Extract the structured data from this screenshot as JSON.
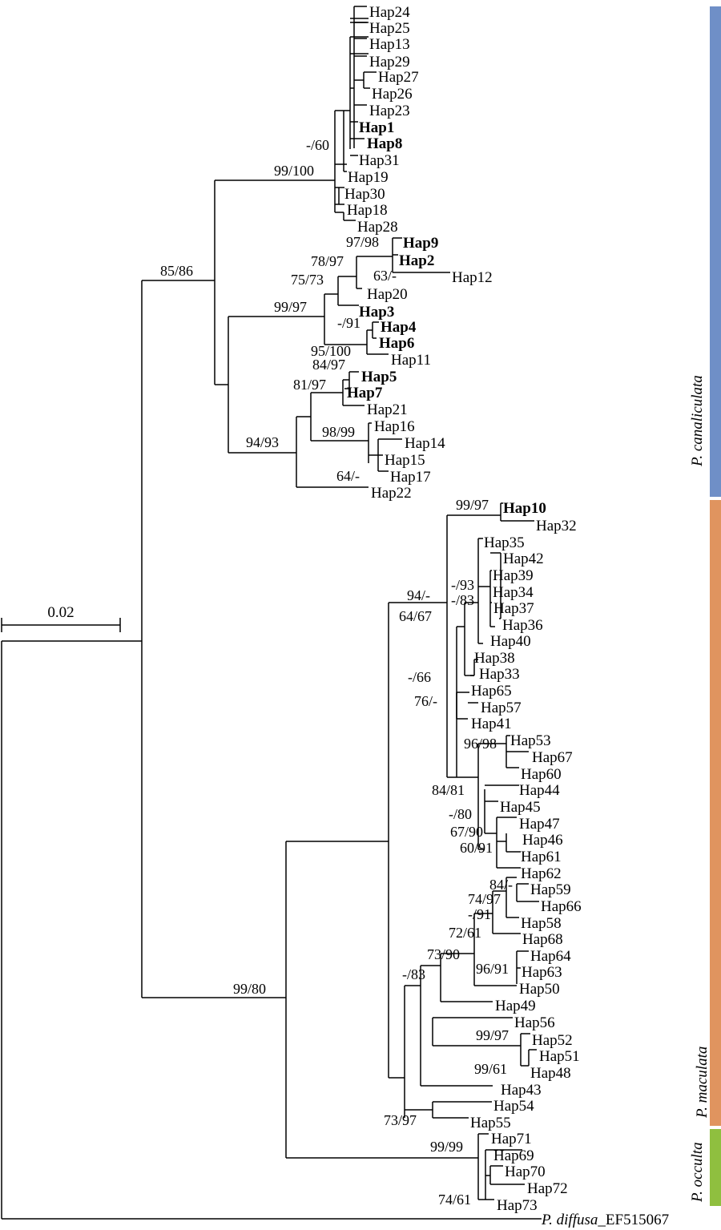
{
  "scale_bar": {
    "label": "0.02"
  },
  "clades": [
    {
      "name": "P. canaliculata",
      "color": "#6f8fc7"
    },
    {
      "name": "P. maculata",
      "color": "#e0945f"
    },
    {
      "name": "P. occulta",
      "color": "#8fbf3f"
    }
  ],
  "outgroup": {
    "genus": "P. diffusa",
    "accession": "_EF515067"
  },
  "taxa": [
    {
      "name": "Hap24",
      "bold": false
    },
    {
      "name": "Hap25",
      "bold": false
    },
    {
      "name": "Hap13",
      "bold": false
    },
    {
      "name": "Hap29",
      "bold": false
    },
    {
      "name": "Hap27",
      "bold": false
    },
    {
      "name": "Hap26",
      "bold": false
    },
    {
      "name": "Hap23",
      "bold": false
    },
    {
      "name": "Hap1",
      "bold": true
    },
    {
      "name": "Hap8",
      "bold": true
    },
    {
      "name": "Hap31",
      "bold": false
    },
    {
      "name": "Hap19",
      "bold": false
    },
    {
      "name": "Hap30",
      "bold": false
    },
    {
      "name": "Hap18",
      "bold": false
    },
    {
      "name": "Hap28",
      "bold": false
    },
    {
      "name": "Hap9",
      "bold": true
    },
    {
      "name": "Hap2",
      "bold": true
    },
    {
      "name": "Hap12",
      "bold": false
    },
    {
      "name": "Hap20",
      "bold": false
    },
    {
      "name": "Hap3",
      "bold": true
    },
    {
      "name": "Hap4",
      "bold": true
    },
    {
      "name": "Hap6",
      "bold": true
    },
    {
      "name": "Hap11",
      "bold": false
    },
    {
      "name": "Hap5",
      "bold": true
    },
    {
      "name": "Hap7",
      "bold": true
    },
    {
      "name": "Hap21",
      "bold": false
    },
    {
      "name": "Hap16",
      "bold": false
    },
    {
      "name": "Hap14",
      "bold": false
    },
    {
      "name": "Hap15",
      "bold": false
    },
    {
      "name": "Hap17",
      "bold": false
    },
    {
      "name": "Hap22",
      "bold": false
    },
    {
      "name": "Hap10",
      "bold": true
    },
    {
      "name": "Hap32",
      "bold": false
    },
    {
      "name": "Hap35",
      "bold": false
    },
    {
      "name": "Hap42",
      "bold": false
    },
    {
      "name": "Hap39",
      "bold": false
    },
    {
      "name": "Hap34",
      "bold": false
    },
    {
      "name": "Hap37",
      "bold": false
    },
    {
      "name": "Hap36",
      "bold": false
    },
    {
      "name": "Hap40",
      "bold": false
    },
    {
      "name": "Hap38",
      "bold": false
    },
    {
      "name": "Hap33",
      "bold": false
    },
    {
      "name": "Hap65",
      "bold": false
    },
    {
      "name": "Hap57",
      "bold": false
    },
    {
      "name": "Hap41",
      "bold": false
    },
    {
      "name": "Hap53",
      "bold": false
    },
    {
      "name": "Hap67",
      "bold": false
    },
    {
      "name": "Hap60",
      "bold": false
    },
    {
      "name": "Hap44",
      "bold": false
    },
    {
      "name": "Hap45",
      "bold": false
    },
    {
      "name": "Hap47",
      "bold": false
    },
    {
      "name": "Hap46",
      "bold": false
    },
    {
      "name": "Hap61",
      "bold": false
    },
    {
      "name": "Hap62",
      "bold": false
    },
    {
      "name": "Hap59",
      "bold": false
    },
    {
      "name": "Hap66",
      "bold": false
    },
    {
      "name": "Hap58",
      "bold": false
    },
    {
      "name": "Hap68",
      "bold": false
    },
    {
      "name": "Hap64",
      "bold": false
    },
    {
      "name": "Hap63",
      "bold": false
    },
    {
      "name": "Hap50",
      "bold": false
    },
    {
      "name": "Hap49",
      "bold": false
    },
    {
      "name": "Hap56",
      "bold": false
    },
    {
      "name": "Hap52",
      "bold": false
    },
    {
      "name": "Hap51",
      "bold": false
    },
    {
      "name": "Hap48",
      "bold": false
    },
    {
      "name": "Hap43",
      "bold": false
    },
    {
      "name": "Hap54",
      "bold": false
    },
    {
      "name": "Hap55",
      "bold": false
    },
    {
      "name": "Hap71",
      "bold": false
    },
    {
      "name": "Hap69",
      "bold": false
    },
    {
      "name": "Hap70",
      "bold": false
    },
    {
      "name": "Hap72",
      "bold": false
    },
    {
      "name": "Hap73",
      "bold": false
    }
  ],
  "support": [
    "-/60",
    "99/100",
    "85/86",
    "97/98",
    "78/97",
    "63/-",
    "75/73",
    "99/97",
    "-/91",
    "95/100",
    "84/97",
    "81/97",
    "94/93",
    "98/99",
    "64/-",
    "99/97",
    "94/-",
    "-/93",
    "-/83",
    "64/67",
    "-/66",
    "76/-",
    "96/98",
    "84/81",
    "-/80",
    "67/90",
    "60/91",
    "84/-",
    "74/97",
    "-/91",
    "72/61",
    "73/90",
    "96/91",
    "-/83",
    "99/80",
    "99/97",
    "99/61",
    "73/97",
    "99/99",
    "74/61"
  ]
}
